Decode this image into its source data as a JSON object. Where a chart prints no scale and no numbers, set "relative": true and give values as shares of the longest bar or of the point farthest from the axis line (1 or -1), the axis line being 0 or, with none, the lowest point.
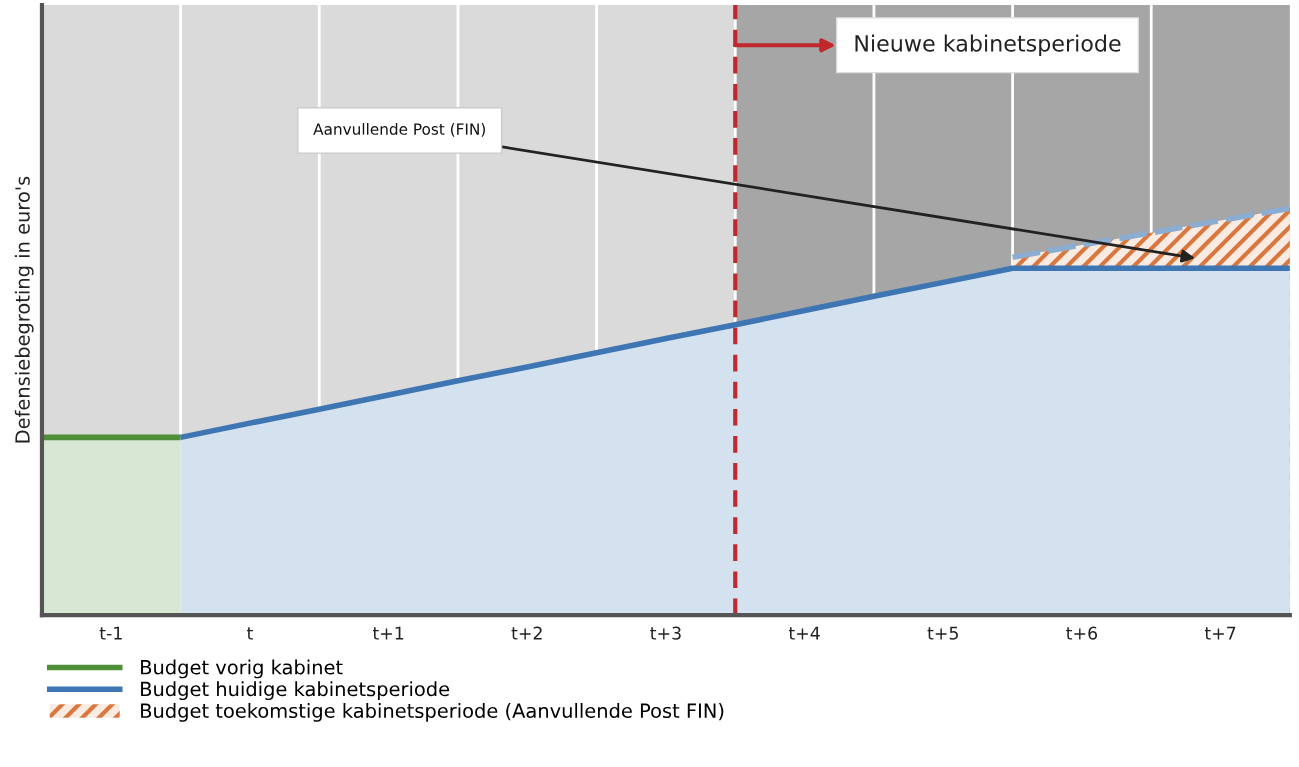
{
  "chart_data": {
    "type": "area",
    "relative": true,
    "ylabel": "Defensiebegroting in euro's",
    "grid": "x",
    "legend": "bottom left",
    "categories": [
      null,
      "t-1",
      null,
      "t",
      null,
      "t+1",
      null,
      "t+2",
      null,
      "t+3",
      null,
      "t+4",
      null,
      "t+5",
      null,
      "t+6",
      null,
      "t+7",
      null
    ],
    "series": [
      {
        "name": "Budget vorig kabinet",
        "color": "#4f8f3a",
        "values": [
          0.437,
          0.437,
          0.437,
          null,
          null,
          null,
          null,
          null,
          null,
          null,
          null,
          null,
          null,
          null,
          null,
          null,
          null,
          null,
          null
        ]
      },
      {
        "name": "Budget huidige kabinetsperiode",
        "color": "#3d76b3",
        "values": [
          null,
          null,
          0.437,
          0.472,
          0.506,
          0.541,
          0.576,
          0.61,
          0.645,
          0.68,
          0.714,
          0.749,
          0.784,
          0.818,
          0.853,
          0.853,
          0.853,
          0.853,
          0.853
        ]
      },
      {
        "name": "Budget toekomstige kabinetsperiode (Aanvullende Post FIN)",
        "color": "#d9773f",
        "line_style": "dashed",
        "values": [
          null,
          null,
          null,
          null,
          null,
          null,
          null,
          null,
          null,
          null,
          null,
          null,
          null,
          null,
          0.88,
          0.91,
          0.94,
          0.97,
          1.0
        ]
      }
    ],
    "annotations": [
      "Nieuwe kabinetsperiode",
      "Aanvullende Post (FIN)"
    ]
  }
}
